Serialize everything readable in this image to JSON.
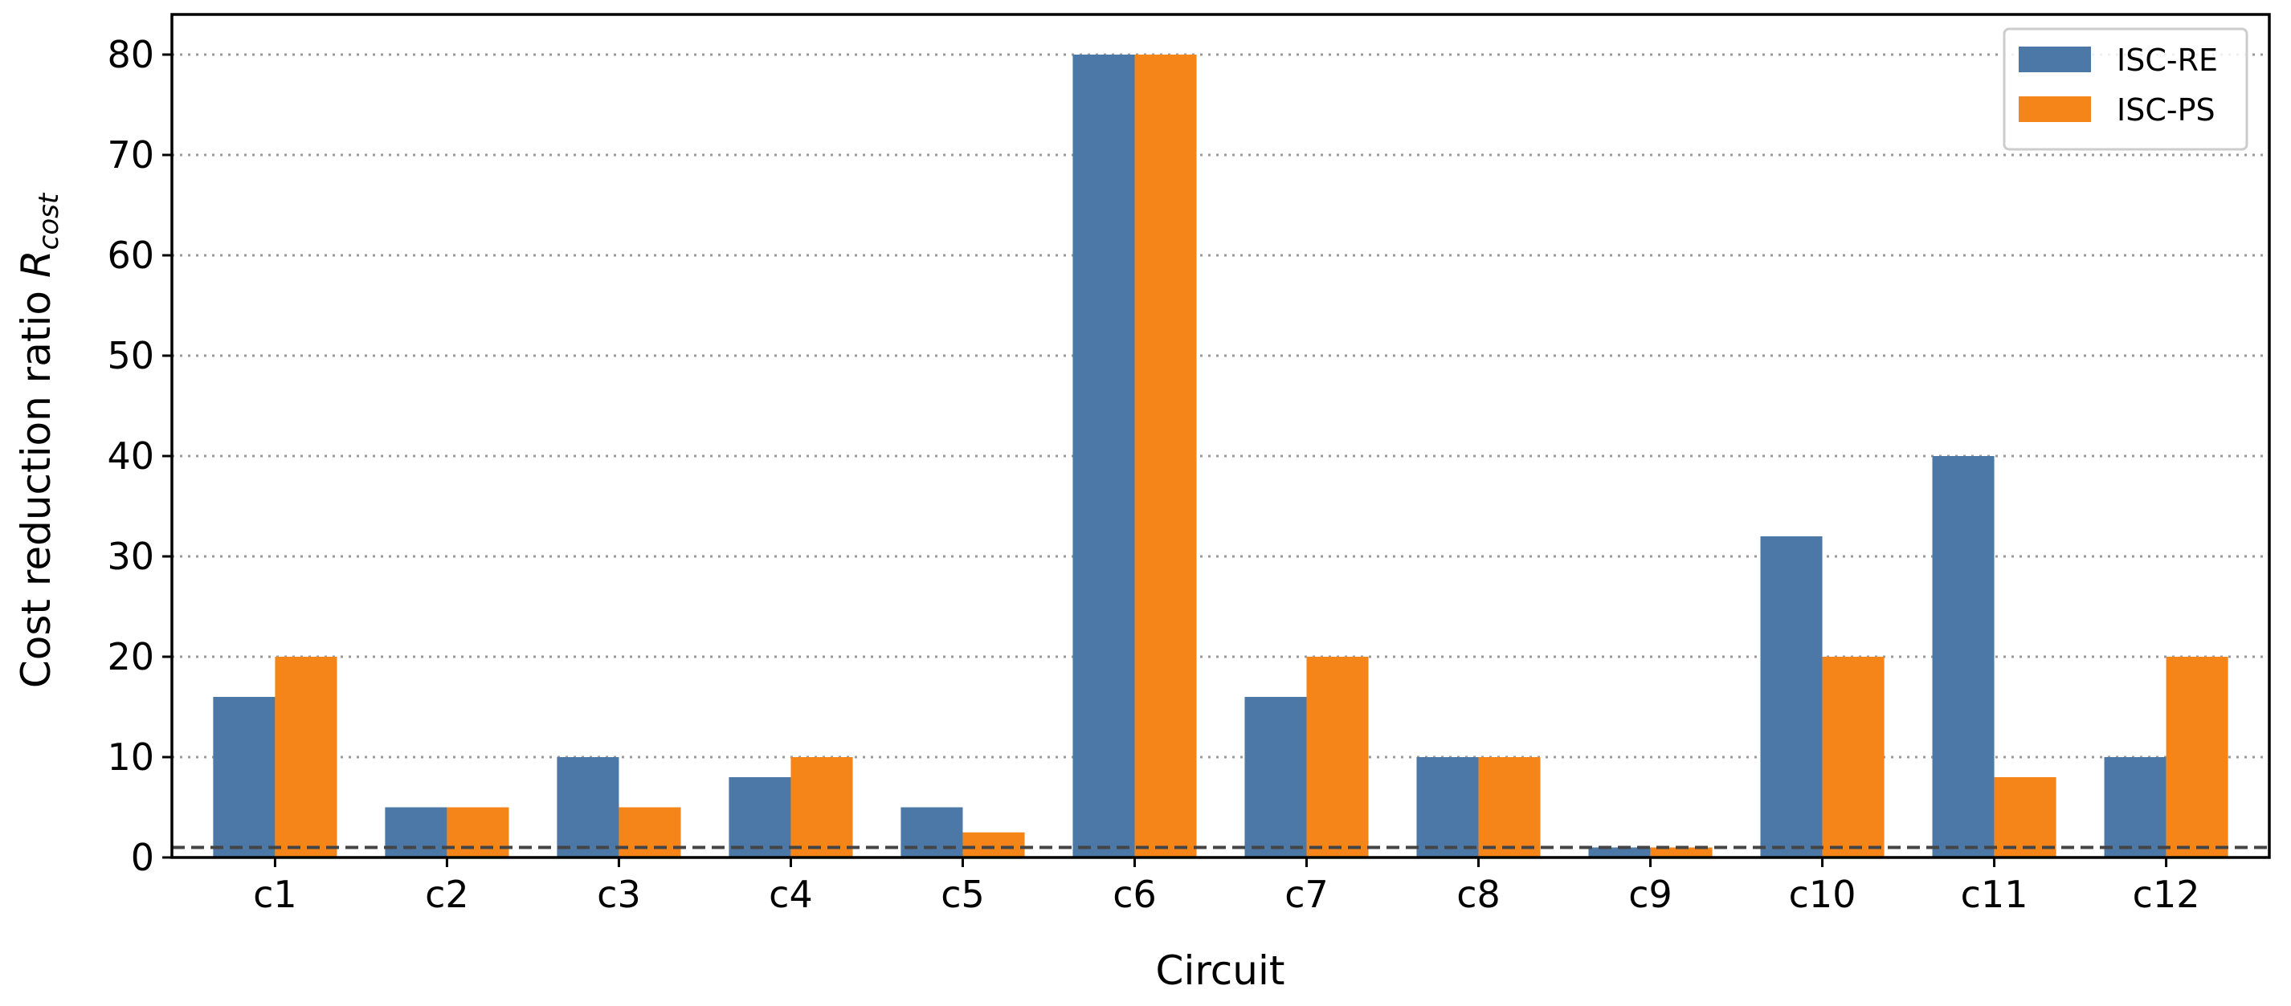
{
  "chart_data": {
    "type": "bar",
    "title": "",
    "xlabel": "Circuit",
    "ylabel": {
      "main": "Cost reduction ratio ",
      "symbol": "R",
      "subscript": "cost"
    },
    "categories": [
      "c1",
      "c2",
      "c3",
      "c4",
      "c5",
      "c6",
      "c7",
      "c8",
      "c9",
      "c10",
      "c11",
      "c12"
    ],
    "series": [
      {
        "name": "ISC-RE",
        "color": "#4c78a8",
        "values": [
          16,
          5,
          10,
          8,
          5,
          80,
          16,
          10,
          1,
          32,
          40,
          10
        ]
      },
      {
        "name": "ISC-PS",
        "color": "#f58518",
        "values": [
          20,
          5,
          5,
          10,
          2.5,
          80,
          20,
          10,
          1,
          20,
          8,
          20
        ]
      }
    ],
    "ylim": [
      0,
      84
    ],
    "yticks": [
      0,
      10,
      20,
      30,
      40,
      50,
      60,
      70,
      80
    ],
    "grid": "horizontal dotted",
    "reference_line": {
      "y": 1,
      "style": "dashed"
    },
    "legend_position": "top-right"
  }
}
